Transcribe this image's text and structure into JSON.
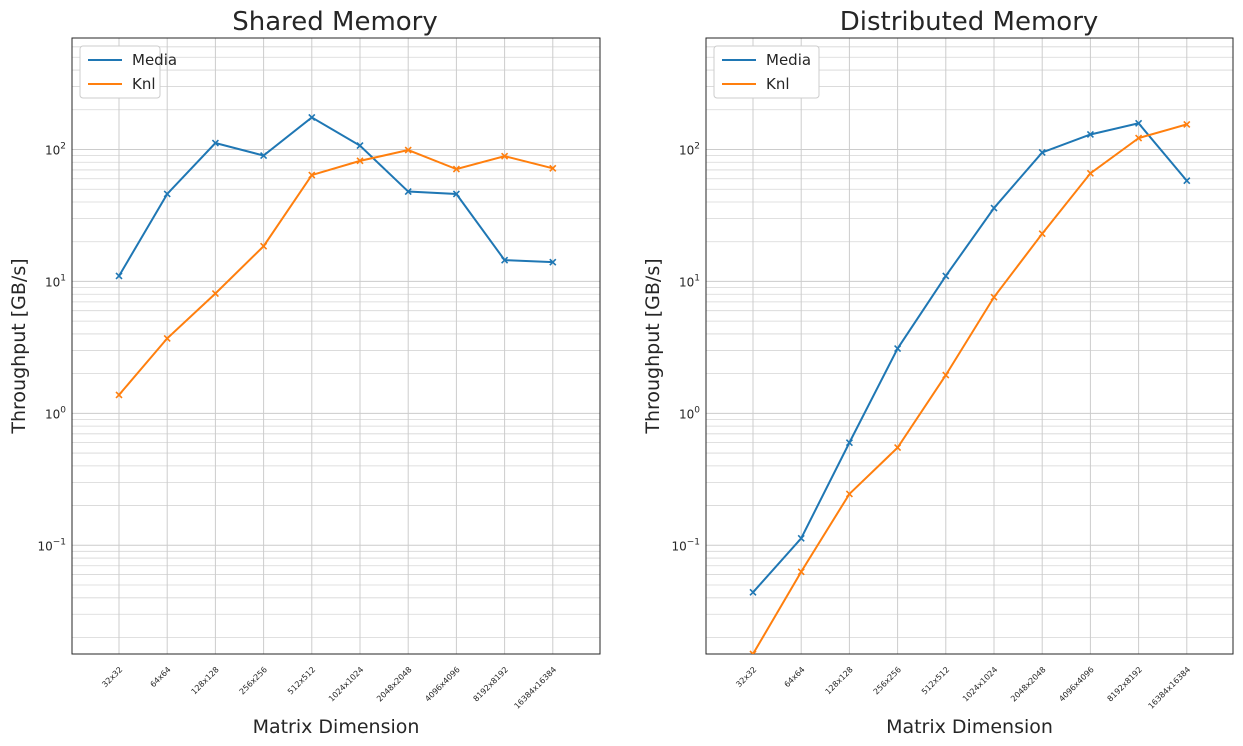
{
  "chart_data": [
    {
      "type": "line",
      "title": "Shared Memory",
      "xlabel": "Matrix Dimension",
      "ylabel": "Throughput [GB/s]",
      "yscale": "log",
      "ylim": [
        0.015,
        700
      ],
      "yticks": [
        {
          "base": "10",
          "exp": "−1",
          "value": 0.1
        },
        {
          "base": "10",
          "exp": "0",
          "value": 1
        },
        {
          "base": "10",
          "exp": "1",
          "value": 10
        },
        {
          "base": "10",
          "exp": "2",
          "value": 100
        }
      ],
      "grid": true,
      "legend_position": "top-left",
      "categories": [
        "32x32",
        "64x64",
        "128x128",
        "256x256",
        "512x512",
        "1024x1024",
        "2048x2048",
        "4096x4096",
        "8192x8192",
        "16384x16384"
      ],
      "series": [
        {
          "name": "Media",
          "color": "#1f77b4",
          "marker": "x",
          "values": [
            11,
            46,
            112,
            90,
            175,
            107,
            48,
            46,
            14.5,
            14
          ]
        },
        {
          "name": "Knl",
          "color": "#ff7f0e",
          "marker": "x",
          "values": [
            1.38,
            3.7,
            8.1,
            18.5,
            64,
            82,
            99,
            71,
            89,
            72
          ]
        }
      ]
    },
    {
      "type": "line",
      "title": "Distributed Memory",
      "xlabel": "Matrix Dimension",
      "ylabel": "Throughput [GB/s]",
      "yscale": "log",
      "ylim": [
        0.015,
        700
      ],
      "yticks": [
        {
          "base": "10",
          "exp": "−1",
          "value": 0.1
        },
        {
          "base": "10",
          "exp": "0",
          "value": 1
        },
        {
          "base": "10",
          "exp": "1",
          "value": 10
        },
        {
          "base": "10",
          "exp": "2",
          "value": 100
        }
      ],
      "grid": true,
      "legend_position": "top-left",
      "categories": [
        "32x32",
        "64x64",
        "128x128",
        "256x256",
        "512x512",
        "1024x1024",
        "2048x2048",
        "4096x4096",
        "8192x8192",
        "16384x16384"
      ],
      "series": [
        {
          "name": "Media",
          "color": "#1f77b4",
          "marker": "x",
          "values": [
            0.044,
            0.113,
            0.6,
            3.1,
            11,
            36,
            95,
            130,
            158,
            58
          ]
        },
        {
          "name": "Knl",
          "color": "#ff7f0e",
          "marker": "x",
          "values": [
            0.015,
            0.063,
            0.245,
            0.55,
            1.95,
            7.6,
            23,
            66,
            122,
            155
          ]
        }
      ]
    }
  ]
}
